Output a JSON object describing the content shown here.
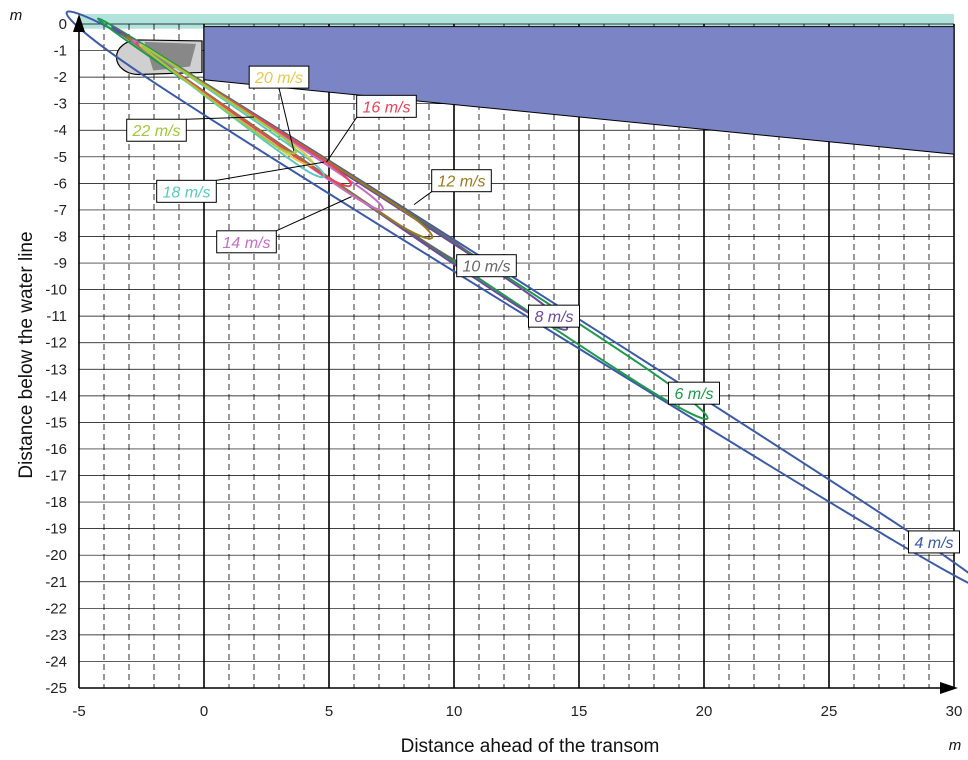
{
  "chart_data": {
    "type": "line",
    "title": "",
    "xlabel": "Distance ahead of the transom",
    "ylabel": "Distance below the water line",
    "x_unit": "m",
    "y_unit": "m",
    "xlim": [
      -5,
      30
    ],
    "ylim": [
      -25,
      0
    ],
    "x_ticks": [
      "-5",
      "0",
      "5",
      "10",
      "15",
      "20",
      "25",
      "30"
    ],
    "y_ticks": [
      "0",
      "-1",
      "-2",
      "-3",
      "-4",
      "-5",
      "-6",
      "-7",
      "-8",
      "-9",
      "-10",
      "-11",
      "-12",
      "-13",
      "-14",
      "-15",
      "-16",
      "-17",
      "-18",
      "-19",
      "-20",
      "-21",
      "-22",
      "-23",
      "-24",
      "-25"
    ],
    "grid": true,
    "water_surface_color": "#b2e2dc",
    "hull_color": "#7b84c4",
    "hull_polygon": [
      [
        0,
        -0.1
      ],
      [
        30,
        -0.1
      ],
      [
        30,
        -4.9
      ],
      [
        0,
        -2.1
      ]
    ],
    "propeller": {
      "x": [
        -3.5,
        0
      ],
      "y": [
        -0.6,
        -1.9
      ]
    },
    "series": [
      {
        "name": "4 m/s",
        "color": "#3b5aa8",
        "points": [
          [
            -2.0,
            -2.2
          ],
          [
            27.5,
            -19.4
          ],
          [
            28.0,
            -19.0
          ],
          [
            -1.6,
            -1.3
          ]
        ]
      },
      {
        "name": "6 m/s",
        "color": "#1e9a4a",
        "points": [
          [
            -1.9,
            -1.4
          ],
          [
            17.5,
            -13.6
          ],
          [
            17.9,
            -13.1
          ],
          [
            -1.7,
            -1.2
          ]
        ]
      },
      {
        "name": "8 m/s",
        "color": "#6b4a9e",
        "points": [
          [
            -1.9,
            -1.3
          ],
          [
            12.5,
            -10.6
          ],
          [
            12.9,
            -10.1
          ],
          [
            -1.8,
            -1.2
          ]
        ]
      },
      {
        "name": "10 m/s",
        "color": "#666666",
        "points": [
          [
            -1.9,
            -1.3
          ],
          [
            9.5,
            -8.6
          ],
          [
            10.0,
            -8.2
          ],
          [
            -1.8,
            -1.2
          ]
        ]
      },
      {
        "name": "12 m/s",
        "color": "#9a7a1e",
        "points": [
          [
            -1.9,
            -1.3
          ],
          [
            7.7,
            -7.5
          ],
          [
            8.1,
            -7.1
          ],
          [
            -1.8,
            -1.2
          ]
        ]
      },
      {
        "name": "14 m/s",
        "color": "#c46ec4",
        "points": [
          [
            -1.9,
            -1.3
          ],
          [
            6.0,
            -6.5
          ],
          [
            6.3,
            -6.2
          ],
          [
            -1.8,
            -1.2
          ]
        ]
      },
      {
        "name": "16 m/s",
        "color": "#e8435a",
        "points": [
          [
            -1.9,
            -1.3
          ],
          [
            4.8,
            -5.7
          ],
          [
            5.2,
            -5.4
          ],
          [
            -1.8,
            -1.2
          ]
        ]
      },
      {
        "name": "18 m/s",
        "color": "#5ac8c0",
        "points": [
          [
            -1.9,
            -1.3
          ],
          [
            3.9,
            -5.4
          ],
          [
            4.2,
            -5.1
          ],
          [
            -1.8,
            -1.2
          ]
        ]
      },
      {
        "name": "20 m/s",
        "color": "#e8c84a",
        "points": [
          [
            -1.9,
            -1.3
          ],
          [
            3.5,
            -5.0
          ],
          [
            3.8,
            -4.7
          ],
          [
            -1.8,
            -1.2
          ]
        ]
      },
      {
        "name": "22 m/s",
        "color": "#a0c838",
        "points": [
          [
            -1.9,
            -1.3
          ],
          [
            2.9,
            -4.6
          ],
          [
            3.2,
            -4.3
          ],
          [
            -1.8,
            -1.2
          ]
        ]
      }
    ],
    "labels": [
      {
        "text": "4 m/s",
        "color": "#3b5aa8",
        "at": [
          29.2,
          -19.5
        ],
        "pointer": null
      },
      {
        "text": "6 m/s",
        "color": "#1e9a4a",
        "at": [
          19.6,
          -13.9
        ],
        "pointer": null
      },
      {
        "text": "8 m/s",
        "color": "#6b4a9e",
        "at": [
          14.0,
          -11.0
        ],
        "pointer": null
      },
      {
        "text": "10 m/s",
        "color": "#666666",
        "at": [
          11.3,
          -9.1
        ],
        "pointer": null
      },
      {
        "text": "12 m/s",
        "color": "#9a7a1e",
        "at": [
          10.3,
          -5.9
        ],
        "pointer": [
          8.4,
          -6.8
        ]
      },
      {
        "text": "14 m/s",
        "color": "#c46ec4",
        "at": [
          1.7,
          -8.2
        ],
        "pointer": [
          5.9,
          -6.5
        ]
      },
      {
        "text": "16 m/s",
        "color": "#e8435a",
        "at": [
          7.3,
          -3.1
        ],
        "pointer": [
          4.9,
          -5.2
        ]
      },
      {
        "text": "18 m/s",
        "color": "#5ac8c0",
        "at": [
          -0.7,
          -6.3
        ],
        "pointer": [
          4.8,
          -5.2
        ]
      },
      {
        "text": "20 m/s",
        "color": "#e8c84a",
        "at": [
          3.0,
          -2.0
        ],
        "pointer": [
          3.6,
          -4.8
        ]
      },
      {
        "text": "22 m/s",
        "color": "#a0c838",
        "at": [
          -1.9,
          -4.0
        ],
        "pointer": [
          2.0,
          -3.5
        ]
      }
    ]
  }
}
